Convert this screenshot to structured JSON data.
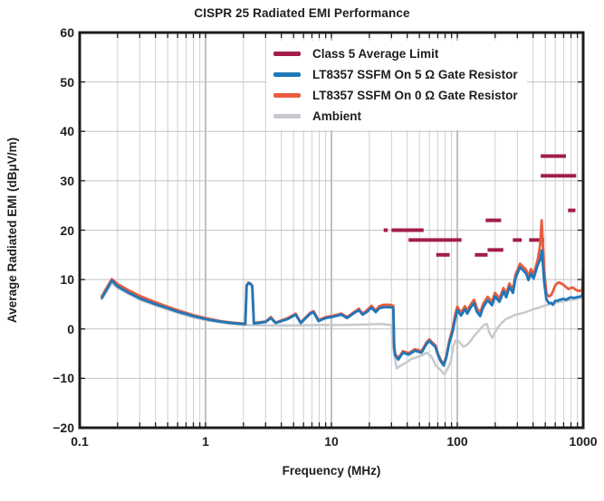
{
  "title": "CISPR 25 Radiated EMI Performance",
  "axes": {
    "x_label": "Frequency (MHz)",
    "y_label": "Average Radiated EMI (dBμV/m)",
    "x_ticks": [
      {
        "value": 0.1,
        "label": "0.1"
      },
      {
        "value": 1,
        "label": "1"
      },
      {
        "value": 10,
        "label": "10"
      },
      {
        "value": 100,
        "label": "100"
      },
      {
        "value": 1000,
        "label": "1000"
      }
    ],
    "y_ticks": [
      {
        "value": 60,
        "label": "60"
      },
      {
        "value": 50,
        "label": "50"
      },
      {
        "value": 40,
        "label": "40"
      },
      {
        "value": 30,
        "label": "30"
      },
      {
        "value": 20,
        "label": "20"
      },
      {
        "value": 10,
        "label": "10"
      },
      {
        "value": 0,
        "label": "0"
      },
      {
        "value": -10,
        "label": "−10"
      },
      {
        "value": -20,
        "label": "−20"
      }
    ]
  },
  "colors": {
    "text": "#1e1e1e",
    "frame": "#1c1c1c",
    "grid_minor": "#d0d0d0",
    "grid_major": "#9e9e9e",
    "grid_horizontal": "#c3c3c3"
  },
  "chart_data": {
    "type": "line",
    "title": "CISPR 25 Radiated EMI Performance",
    "xlabel": "Frequency (MHz)",
    "ylabel": "Average Radiated EMI (dBμV/m)",
    "x_scale": "log",
    "xlim": [
      0.1,
      1000
    ],
    "ylim": [
      -20,
      60
    ],
    "y_tick_step": 10,
    "grid": true,
    "legend_position": "top-center-inside",
    "series": [
      {
        "name": "Class 5 Average Limit",
        "color": "#a21d47",
        "style": "segments",
        "segments_format": [
          "freq_start_MHz",
          "freq_end_MHz",
          "level_dBuV_per_m"
        ],
        "segments": [
          [
            26,
            28,
            20
          ],
          [
            30,
            54,
            20
          ],
          [
            41,
            108,
            18
          ],
          [
            68,
            87,
            15
          ],
          [
            138,
            174,
            15
          ],
          [
            168,
            223,
            22
          ],
          [
            174,
            232,
            16
          ],
          [
            276,
            325,
            18
          ],
          [
            372,
            490,
            18
          ],
          [
            460,
            730,
            35
          ],
          [
            460,
            880,
            31
          ],
          [
            758,
            868,
            24
          ]
        ]
      },
      {
        "name": "LT8357 SSFM On 5 Ω Gate Resistor",
        "color": "#2077b8",
        "style": "line",
        "points": [
          [
            0.15,
            6.3
          ],
          [
            0.16,
            7.5
          ],
          [
            0.18,
            9.8
          ],
          [
            0.2,
            8.6
          ],
          [
            0.25,
            7.2
          ],
          [
            0.3,
            6.2
          ],
          [
            0.4,
            5.0
          ],
          [
            0.5,
            4.2
          ],
          [
            0.6,
            3.5
          ],
          [
            0.8,
            2.6
          ],
          [
            1.0,
            2.0
          ],
          [
            1.3,
            1.5
          ],
          [
            1.6,
            1.2
          ],
          [
            2.0,
            1.0
          ],
          [
            2.07,
            1.0
          ],
          [
            2.12,
            8.8
          ],
          [
            2.2,
            9.3
          ],
          [
            2.3,
            9.0
          ],
          [
            2.35,
            8.6
          ],
          [
            2.42,
            1.1
          ],
          [
            2.6,
            1.2
          ],
          [
            3.0,
            1.4
          ],
          [
            3.3,
            2.2
          ],
          [
            3.6,
            1.2
          ],
          [
            4.5,
            2.0
          ],
          [
            5.2,
            2.9
          ],
          [
            5.7,
            1.2
          ],
          [
            6.8,
            3.1
          ],
          [
            7.2,
            3.4
          ],
          [
            7.9,
            1.6
          ],
          [
            9.0,
            2.2
          ],
          [
            10.4,
            2.5
          ],
          [
            12,
            2.9
          ],
          [
            13.3,
            2.2
          ],
          [
            14.9,
            3.1
          ],
          [
            16.5,
            3.8
          ],
          [
            17.7,
            2.9
          ],
          [
            19,
            3.4
          ],
          [
            20.8,
            4.3
          ],
          [
            22.5,
            3.4
          ],
          [
            24,
            4.2
          ],
          [
            26,
            4.4
          ],
          [
            29,
            4.4
          ],
          [
            31,
            4.3
          ],
          [
            31.5,
            -3.6
          ],
          [
            32,
            -5.3
          ],
          [
            34,
            -6.2
          ],
          [
            37,
            -4.8
          ],
          [
            41,
            -5.2
          ],
          [
            46,
            -4.4
          ],
          [
            52,
            -4.8
          ],
          [
            57,
            -3.0
          ],
          [
            60,
            -2.4
          ],
          [
            63,
            -3.0
          ],
          [
            67,
            -3.6
          ],
          [
            70,
            -5.2
          ],
          [
            74,
            -6.6
          ],
          [
            78,
            -7.4
          ],
          [
            82,
            -5.7
          ],
          [
            86,
            -3.0
          ],
          [
            92,
            -0.5
          ],
          [
            96,
            2.0
          ],
          [
            100,
            3.8
          ],
          [
            107,
            2.7
          ],
          [
            115,
            4.0
          ],
          [
            120,
            3.1
          ],
          [
            128,
            4.4
          ],
          [
            136,
            5.2
          ],
          [
            143,
            3.5
          ],
          [
            152,
            2.6
          ],
          [
            160,
            4.3
          ],
          [
            174,
            5.8
          ],
          [
            189,
            4.8
          ],
          [
            199,
            6.6
          ],
          [
            216,
            5.5
          ],
          [
            233,
            7.6
          ],
          [
            245,
            6.4
          ],
          [
            259,
            8.5
          ],
          [
            277,
            7.3
          ],
          [
            290,
            10.3
          ],
          [
            315,
            12.5
          ],
          [
            330,
            12.0
          ],
          [
            352,
            11.2
          ],
          [
            367,
            9.9
          ],
          [
            385,
            11.2
          ],
          [
            404,
            10.2
          ],
          [
            435,
            12.9
          ],
          [
            455,
            14.0
          ],
          [
            470,
            15.9
          ],
          [
            490,
            9.5
          ],
          [
            510,
            6.0
          ],
          [
            535,
            5.2
          ],
          [
            555,
            5.3
          ],
          [
            575,
            4.9
          ],
          [
            600,
            5.7
          ],
          [
            625,
            5.7
          ],
          [
            650,
            5.9
          ],
          [
            700,
            6.1
          ],
          [
            730,
            5.9
          ],
          [
            790,
            6.4
          ],
          [
            850,
            6.3
          ],
          [
            920,
            6.5
          ],
          [
            975,
            6.7
          ],
          [
            990,
            7.2
          ],
          [
            1000,
            9.5
          ]
        ]
      },
      {
        "name": "LT8357 SSFM On 0 Ω Gate Resistor",
        "color": "#e95c40",
        "style": "line",
        "points": [
          [
            0.15,
            6.6
          ],
          [
            0.16,
            7.9
          ],
          [
            0.18,
            10.1
          ],
          [
            0.2,
            9.1
          ],
          [
            0.25,
            7.7
          ],
          [
            0.3,
            6.7
          ],
          [
            0.4,
            5.4
          ],
          [
            0.5,
            4.5
          ],
          [
            0.6,
            3.8
          ],
          [
            0.8,
            2.8
          ],
          [
            1.0,
            2.2
          ],
          [
            1.3,
            1.6
          ],
          [
            1.6,
            1.3
          ],
          [
            2.0,
            1.1
          ],
          [
            2.07,
            1.1
          ],
          [
            2.12,
            8.9
          ],
          [
            2.2,
            9.4
          ],
          [
            2.3,
            9.1
          ],
          [
            2.35,
            8.7
          ],
          [
            2.42,
            1.2
          ],
          [
            2.6,
            1.3
          ],
          [
            3.0,
            1.5
          ],
          [
            3.3,
            2.4
          ],
          [
            3.6,
            1.3
          ],
          [
            4.5,
            2.2
          ],
          [
            5.2,
            3.1
          ],
          [
            5.7,
            1.3
          ],
          [
            6.8,
            3.3
          ],
          [
            7.2,
            3.6
          ],
          [
            7.9,
            1.8
          ],
          [
            9.0,
            2.4
          ],
          [
            10.4,
            2.7
          ],
          [
            12,
            3.1
          ],
          [
            13.3,
            2.4
          ],
          [
            14.9,
            3.3
          ],
          [
            16.5,
            4.1
          ],
          [
            17.7,
            3.1
          ],
          [
            19,
            3.7
          ],
          [
            20.8,
            4.7
          ],
          [
            22.5,
            3.7
          ],
          [
            24,
            4.6
          ],
          [
            26,
            4.9
          ],
          [
            29,
            4.9
          ],
          [
            31,
            4.7
          ],
          [
            31.5,
            -3.2
          ],
          [
            32,
            -5.0
          ],
          [
            34,
            -5.9
          ],
          [
            37,
            -4.5
          ],
          [
            41,
            -4.9
          ],
          [
            46,
            -4.1
          ],
          [
            52,
            -4.5
          ],
          [
            57,
            -2.7
          ],
          [
            60,
            -2.1
          ],
          [
            63,
            -2.7
          ],
          [
            67,
            -3.3
          ],
          [
            70,
            -4.9
          ],
          [
            74,
            -6.3
          ],
          [
            78,
            -7.1
          ],
          [
            82,
            -5.4
          ],
          [
            86,
            -2.6
          ],
          [
            92,
            0.2
          ],
          [
            96,
            2.8
          ],
          [
            100,
            4.5
          ],
          [
            107,
            3.3
          ],
          [
            115,
            4.6
          ],
          [
            120,
            3.7
          ],
          [
            128,
            5.0
          ],
          [
            136,
            5.9
          ],
          [
            143,
            4.2
          ],
          [
            152,
            3.3
          ],
          [
            160,
            5.0
          ],
          [
            174,
            6.5
          ],
          [
            189,
            5.5
          ],
          [
            199,
            7.3
          ],
          [
            216,
            6.2
          ],
          [
            233,
            8.3
          ],
          [
            245,
            7.1
          ],
          [
            259,
            9.2
          ],
          [
            277,
            8.0
          ],
          [
            290,
            11.0
          ],
          [
            315,
            13.2
          ],
          [
            330,
            12.7
          ],
          [
            352,
            12.0
          ],
          [
            367,
            10.7
          ],
          [
            385,
            12.1
          ],
          [
            404,
            11.0
          ],
          [
            435,
            14.0
          ],
          [
            455,
            17.0
          ],
          [
            468,
            22.0
          ],
          [
            490,
            12.0
          ],
          [
            510,
            7.2
          ],
          [
            535,
            6.6
          ],
          [
            555,
            6.8
          ],
          [
            575,
            7.6
          ],
          [
            600,
            8.8
          ],
          [
            625,
            9.3
          ],
          [
            650,
            9.4
          ],
          [
            700,
            8.9
          ],
          [
            760,
            8.1
          ],
          [
            825,
            8.4
          ],
          [
            890,
            7.8
          ],
          [
            950,
            7.7
          ],
          [
            985,
            8.0
          ],
          [
            1000,
            13.0
          ]
        ]
      },
      {
        "name": "Ambient",
        "color": "#c6c9cd",
        "style": "line",
        "points": [
          [
            0.15,
            6.0
          ],
          [
            0.18,
            9.3
          ],
          [
            0.2,
            8.3
          ],
          [
            0.3,
            5.9
          ],
          [
            0.5,
            3.9
          ],
          [
            0.8,
            2.3
          ],
          [
            1.0,
            1.8
          ],
          [
            1.5,
            1.1
          ],
          [
            2.0,
            0.8
          ],
          [
            3,
            0.7
          ],
          [
            5,
            0.7
          ],
          [
            8,
            0.8
          ],
          [
            12,
            0.8
          ],
          [
            18,
            0.9
          ],
          [
            25,
            1.0
          ],
          [
            30,
            0.8
          ],
          [
            31,
            -4.0
          ],
          [
            33,
            -8.0
          ],
          [
            35,
            -7.5
          ],
          [
            38,
            -7.0
          ],
          [
            43,
            -6.1
          ],
          [
            48,
            -5.7
          ],
          [
            53,
            -5.3
          ],
          [
            57,
            -4.8
          ],
          [
            62,
            -5.5
          ],
          [
            68,
            -7.5
          ],
          [
            73,
            -8.2
          ],
          [
            79,
            -9.2
          ],
          [
            84,
            -8.0
          ],
          [
            89,
            -6.5
          ],
          [
            93,
            -3.5
          ],
          [
            97,
            -2.4
          ],
          [
            100,
            -2.2
          ],
          [
            105,
            -2.8
          ],
          [
            112,
            -3.6
          ],
          [
            120,
            -3.2
          ],
          [
            128,
            -2.4
          ],
          [
            136,
            -1.4
          ],
          [
            145,
            -0.6
          ],
          [
            155,
            0.2
          ],
          [
            165,
            0.9
          ],
          [
            172,
            1.0
          ],
          [
            180,
            -0.8
          ],
          [
            190,
            -1.8
          ],
          [
            197,
            -0.9
          ],
          [
            210,
            0.3
          ],
          [
            225,
            1.2
          ],
          [
            240,
            1.9
          ],
          [
            260,
            2.3
          ],
          [
            285,
            2.8
          ],
          [
            315,
            3.1
          ],
          [
            350,
            3.4
          ],
          [
            385,
            3.8
          ],
          [
            430,
            4.2
          ],
          [
            480,
            4.6
          ],
          [
            540,
            5.0
          ],
          [
            600,
            5.3
          ],
          [
            700,
            5.6
          ],
          [
            800,
            5.9
          ],
          [
            900,
            6.1
          ],
          [
            1000,
            6.4
          ]
        ]
      }
    ]
  }
}
